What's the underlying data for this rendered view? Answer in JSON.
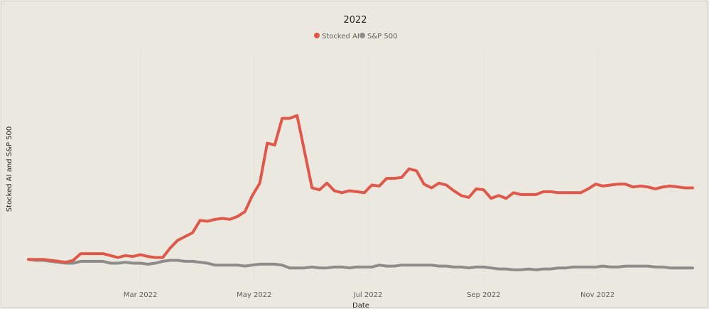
{
  "chart_data": {
    "type": "line",
    "title": "2022",
    "xlabel": "Date",
    "ylabel": "Stocked AI and S&P 500",
    "x_ticks": [
      "Mar 2022",
      "May 2022",
      "Jul 2022",
      "Sep 2022",
      "Nov 2022"
    ],
    "x_tick_days": [
      60,
      121,
      182,
      244,
      305
    ],
    "x_range_days": [
      0,
      356
    ],
    "y_range": [
      0.8,
      3.2
    ],
    "grid": "vertical-dotted",
    "legend_position": "top-center",
    "series": [
      {
        "name": "Stocked AI",
        "color": "#e0584a",
        "days": [
          0,
          4,
          8,
          12,
          16,
          20,
          24,
          28,
          32,
          36,
          40,
          44,
          48,
          52,
          56,
          60,
          64,
          68,
          72,
          76,
          80,
          84,
          88,
          92,
          96,
          100,
          104,
          108,
          112,
          116,
          120,
          124,
          128,
          132,
          136,
          140,
          144,
          148,
          152,
          156,
          160,
          164,
          168,
          172,
          176,
          180,
          184,
          188,
          192,
          196,
          200,
          204,
          208,
          212,
          216,
          220,
          224,
          228,
          232,
          236,
          240,
          244,
          248,
          252,
          256,
          260,
          264,
          268,
          272,
          276,
          280,
          284,
          288,
          292,
          296,
          300,
          304,
          308,
          312,
          316,
          320,
          324,
          328,
          332,
          336,
          340,
          344,
          348,
          352,
          356
        ],
        "values": [
          1.0,
          1.0,
          1.0,
          0.99,
          0.98,
          0.97,
          0.99,
          1.06,
          1.06,
          1.06,
          1.06,
          1.04,
          1.02,
          1.04,
          1.03,
          1.05,
          1.03,
          1.02,
          1.02,
          1.12,
          1.2,
          1.24,
          1.28,
          1.41,
          1.4,
          1.42,
          1.43,
          1.42,
          1.45,
          1.5,
          1.67,
          1.8,
          2.22,
          2.2,
          2.48,
          2.48,
          2.51,
          2.13,
          1.75,
          1.73,
          1.8,
          1.72,
          1.7,
          1.72,
          1.71,
          1.7,
          1.78,
          1.77,
          1.85,
          1.85,
          1.86,
          1.95,
          1.93,
          1.79,
          1.75,
          1.8,
          1.78,
          1.72,
          1.67,
          1.65,
          1.74,
          1.73,
          1.64,
          1.67,
          1.64,
          1.7,
          1.68,
          1.68,
          1.68,
          1.71,
          1.71,
          1.7,
          1.7,
          1.7,
          1.7,
          1.74,
          1.79,
          1.77,
          1.78,
          1.79,
          1.79,
          1.76,
          1.77,
          1.76,
          1.74,
          1.76,
          1.77,
          1.76,
          1.75,
          1.75
        ]
      },
      {
        "name": "S&P 500",
        "color": "#8c8c8a",
        "days": [
          0,
          4,
          8,
          12,
          16,
          20,
          24,
          28,
          32,
          36,
          40,
          44,
          48,
          52,
          56,
          60,
          64,
          68,
          72,
          76,
          80,
          84,
          88,
          92,
          96,
          100,
          104,
          108,
          112,
          116,
          120,
          124,
          128,
          132,
          136,
          140,
          144,
          148,
          152,
          156,
          160,
          164,
          168,
          172,
          176,
          180,
          184,
          188,
          192,
          196,
          200,
          204,
          208,
          212,
          216,
          220,
          224,
          228,
          232,
          236,
          240,
          244,
          248,
          252,
          256,
          260,
          264,
          268,
          272,
          276,
          280,
          284,
          288,
          292,
          296,
          300,
          304,
          308,
          312,
          316,
          320,
          324,
          328,
          332,
          336,
          340,
          344,
          348,
          352,
          356
        ],
        "values": [
          1.0,
          0.99,
          0.99,
          0.98,
          0.97,
          0.96,
          0.96,
          0.98,
          0.98,
          0.98,
          0.98,
          0.96,
          0.96,
          0.97,
          0.96,
          0.96,
          0.95,
          0.96,
          0.98,
          0.99,
          0.99,
          0.98,
          0.98,
          0.97,
          0.96,
          0.94,
          0.94,
          0.94,
          0.94,
          0.93,
          0.94,
          0.95,
          0.95,
          0.95,
          0.94,
          0.91,
          0.91,
          0.91,
          0.92,
          0.91,
          0.91,
          0.92,
          0.92,
          0.91,
          0.92,
          0.92,
          0.92,
          0.94,
          0.93,
          0.93,
          0.94,
          0.94,
          0.94,
          0.94,
          0.94,
          0.93,
          0.93,
          0.92,
          0.92,
          0.91,
          0.92,
          0.92,
          0.91,
          0.9,
          0.9,
          0.89,
          0.89,
          0.9,
          0.89,
          0.9,
          0.9,
          0.91,
          0.91,
          0.92,
          0.92,
          0.92,
          0.92,
          0.93,
          0.92,
          0.92,
          0.93,
          0.93,
          0.93,
          0.93,
          0.92,
          0.92,
          0.91,
          0.91,
          0.91,
          0.91
        ]
      }
    ]
  }
}
